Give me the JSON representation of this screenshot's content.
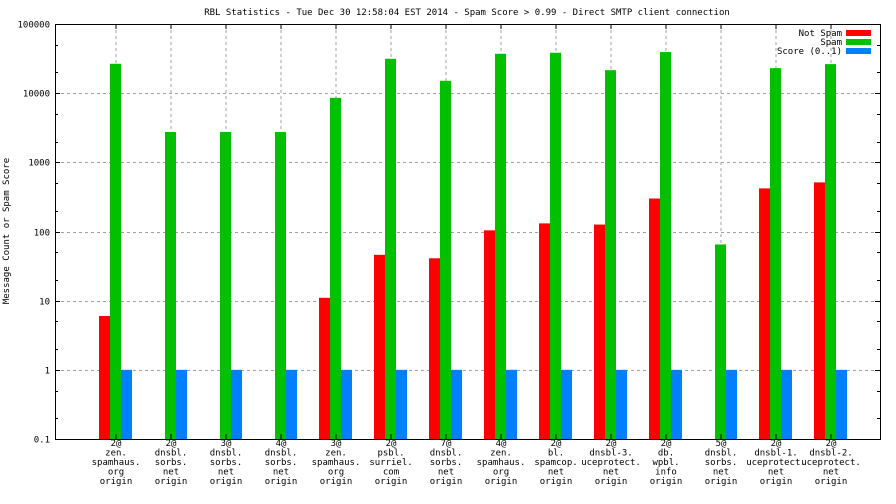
{
  "chart_data": {
    "type": "bar",
    "title": "RBL Statistics - Tue Dec 30 12:58:04 EST 2014 - Spam Score > 0.99 - Direct SMTP client connection",
    "xlabel": "",
    "ylabel": "Message Count or Spam Score",
    "yscale": "log",
    "ylim": [
      0.1,
      100000
    ],
    "yticks": [
      "0.1",
      "1",
      "10",
      "100",
      "1000",
      "10000",
      "100000"
    ],
    "ytick_values": [
      0.1,
      1,
      10,
      100,
      1000,
      10000,
      100000
    ],
    "grid": true,
    "legend_position": "top-right",
    "categories": [
      [
        "2@",
        "zen.",
        "spamhaus.",
        "org",
        "origin"
      ],
      [
        "2@",
        "dnsbl.",
        "sorbs.",
        "net",
        "origin"
      ],
      [
        "3@",
        "dnsbl.",
        "sorbs.",
        "net",
        "origin"
      ],
      [
        "4@",
        "dnsbl.",
        "sorbs.",
        "net",
        "origin"
      ],
      [
        "3@",
        "zen.",
        "spamhaus.",
        "org",
        "origin"
      ],
      [
        "2@",
        "psbl.",
        "surriel.",
        "com",
        "origin"
      ],
      [
        "7@",
        "dnsbl.",
        "sorbs.",
        "net",
        "origin"
      ],
      [
        "4@",
        "zen.",
        "spamhaus.",
        "org",
        "origin"
      ],
      [
        "2@",
        "bl.",
        "spamcop.",
        "net",
        "origin"
      ],
      [
        "2@",
        "dnsbl-3.",
        "uceprotect.",
        "net",
        "origin"
      ],
      [
        "2@",
        "db.",
        "wpbl.",
        "info",
        "origin"
      ],
      [
        "5@",
        "dnsbl.",
        "sorbs.",
        "net",
        "origin"
      ],
      [
        "2@",
        "dnsbl-1.",
        "uceprotect.",
        "net",
        "origin"
      ],
      [
        "2@",
        "dnsbl-2.",
        "uceprotect.",
        "net",
        "origin"
      ]
    ],
    "series": [
      {
        "name": "Not Spam",
        "color": "#ff0000",
        "values": [
          6,
          0,
          0,
          0,
          11,
          46,
          41,
          104,
          131,
          126,
          300,
          0,
          420,
          513
        ]
      },
      {
        "name": "Spam",
        "color": "#00c000",
        "values": [
          26600,
          2750,
          2750,
          2750,
          8550,
          31400,
          15100,
          37100,
          38400,
          21500,
          39300,
          65,
          23000,
          26300
        ]
      },
      {
        "name": "Score (0..1)",
        "color": "#0080ff",
        "values": [
          1,
          1,
          1,
          1,
          1,
          1,
          1,
          1,
          1,
          1,
          1,
          1,
          1,
          1
        ]
      }
    ]
  }
}
